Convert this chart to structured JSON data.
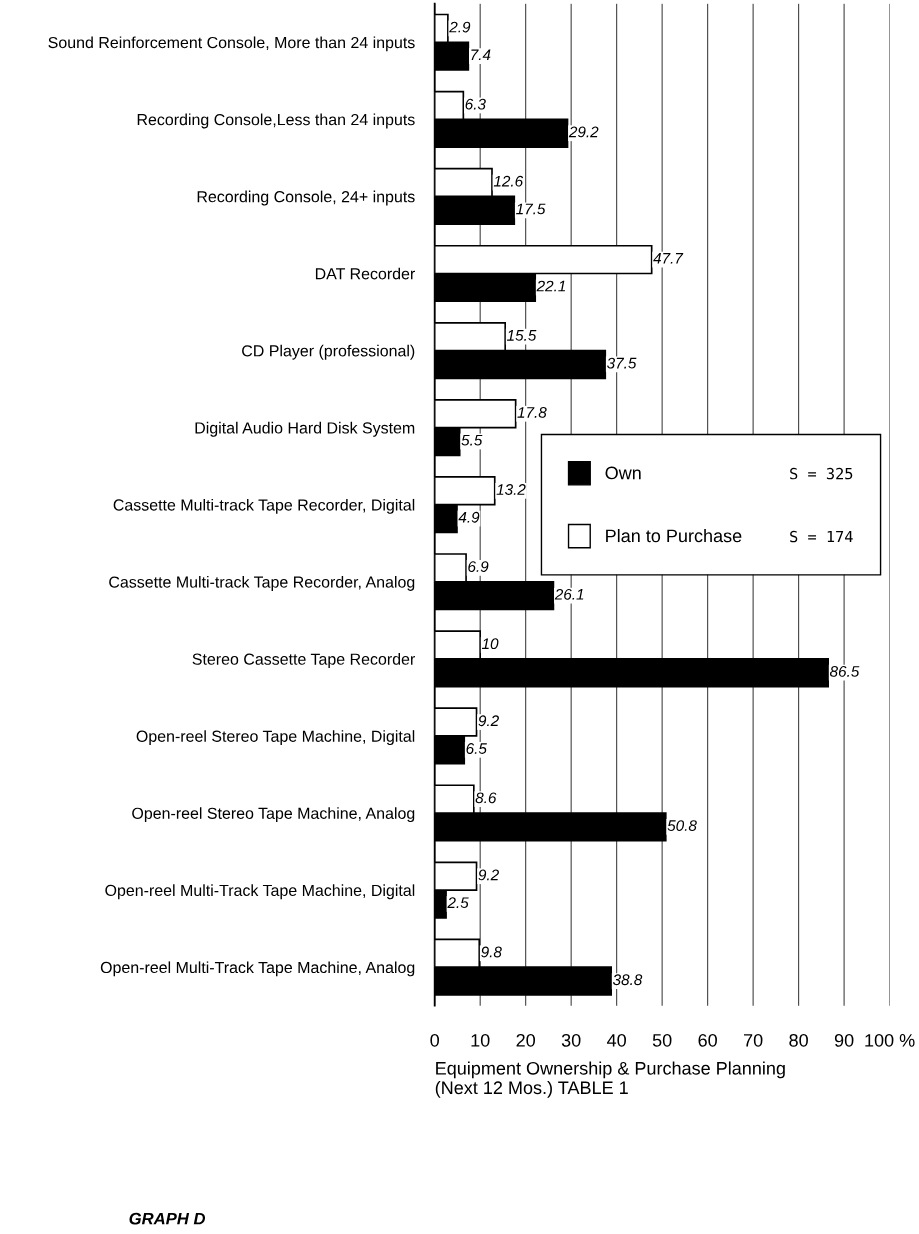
{
  "chart_data": {
    "type": "bar",
    "orientation": "horizontal",
    "categories": [
      "Sound Reinforcement Console, More than 24 inputs",
      "Recording Console,Less than 24 inputs",
      "Recording Console, 24+ inputs",
      "DAT Recorder",
      "CD Player (professional)",
      "Digital Audio Hard Disk System",
      "Cassette Multi-track Tape Recorder, Digital",
      "Cassette Multi-track Tape Recorder, Analog",
      "Stereo Cassette Tape Recorder",
      "Open-reel Stereo Tape Machine, Digital",
      "Open-reel Stereo Tape Machine, Analog",
      "Open-reel Multi-Track Tape Machine, Digital",
      "Open-reel Multi-Track Tape Machine, Analog"
    ],
    "series": [
      {
        "name": "Own",
        "color": "#000000",
        "values": [
          7.4,
          29.2,
          17.5,
          22.1,
          37.5,
          5.5,
          4.9,
          26.1,
          86.5,
          6.5,
          50.8,
          2.5,
          38.8
        ]
      },
      {
        "name": "Plan to Purchase",
        "color": "#ffffff",
        "values": [
          2.9,
          6.3,
          12.6,
          47.7,
          15.5,
          17.8,
          13.2,
          6.9,
          10,
          9.2,
          8.6,
          9.2,
          9.8
        ]
      }
    ],
    "xlim": [
      0,
      100
    ],
    "xticks": [
      0,
      10,
      20,
      30,
      40,
      50,
      60,
      70,
      80,
      90,
      {
        "value": 100,
        "label": "100 %"
      }
    ],
    "xlabel": "Equipment Ownership & Purchase Planning\n(Next 12 Mos.) TABLE 1",
    "annotations": [
      "S = 325",
      "S = 174",
      "GRAPH D"
    ],
    "data_labels": true,
    "grid": "x",
    "legend": "center right"
  }
}
